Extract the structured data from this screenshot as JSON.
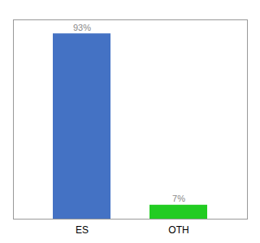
{
  "chart_data": {
    "type": "bar",
    "categories": [
      "ES",
      "OTH"
    ],
    "values": [
      93,
      7
    ],
    "value_labels": [
      "93%",
      "7%"
    ],
    "colors": [
      "#4472c4",
      "#22cc22"
    ],
    "ylim": [
      0,
      100
    ],
    "data_labels": true,
    "tick_labels": "x"
  }
}
